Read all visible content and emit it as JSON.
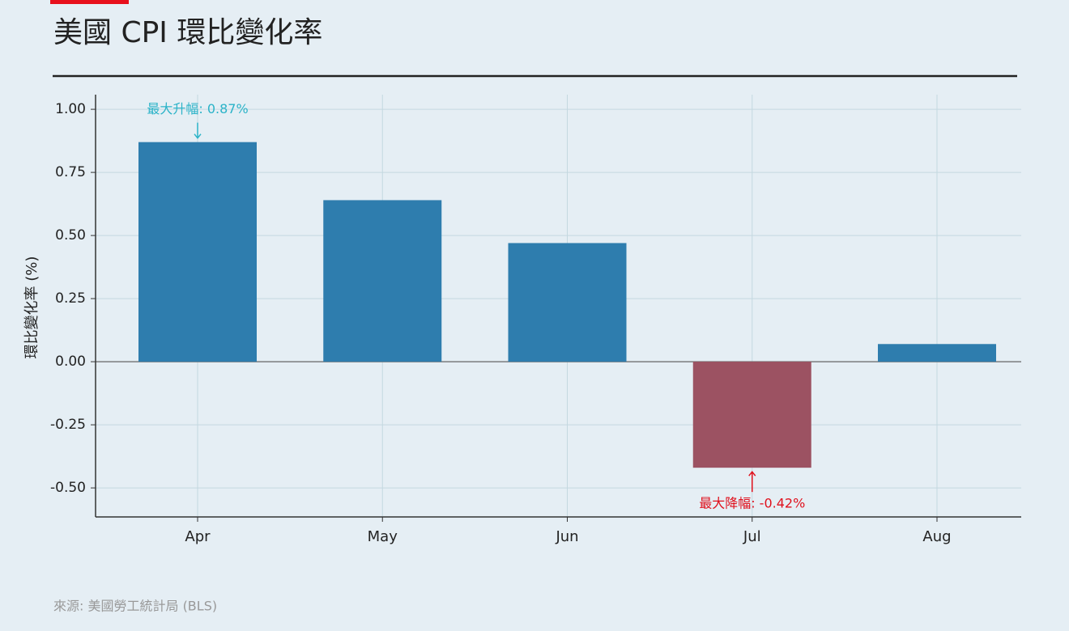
{
  "chart_data": {
    "type": "bar",
    "title": "美國 CPI 環比變化率",
    "y_label": "環比變化率 (%)",
    "source": "來源: 美國勞工統計局 (BLS)",
    "categories": [
      "Apr",
      "May",
      "Jun",
      "Jul",
      "Aug"
    ],
    "values": [
      0.87,
      0.64,
      0.47,
      -0.42,
      0.07
    ],
    "color": "#2e7dae",
    "negative_color": "#9c5262",
    "ylim": [
      -0.615,
      1.058
    ],
    "yticks": [
      {
        "value": 1,
        "label": "1.00"
      },
      {
        "value": 0.75,
        "label": "0.75"
      },
      {
        "value": 0.5,
        "label": "0.50"
      },
      {
        "value": 0.25,
        "label": "0.25"
      },
      {
        "value": 0,
        "label": "0.00"
      },
      {
        "value": -0.25,
        "label": "-0.25"
      },
      {
        "value": -0.5,
        "label": "-0.50"
      }
    ],
    "grid": true,
    "annotations": {
      "max": {
        "text": "最大升幅: 0.87%",
        "color": "#2bb3c8"
      },
      "min": {
        "text": "最大降幅: -0.42%",
        "color": "#e0101c"
      }
    }
  }
}
